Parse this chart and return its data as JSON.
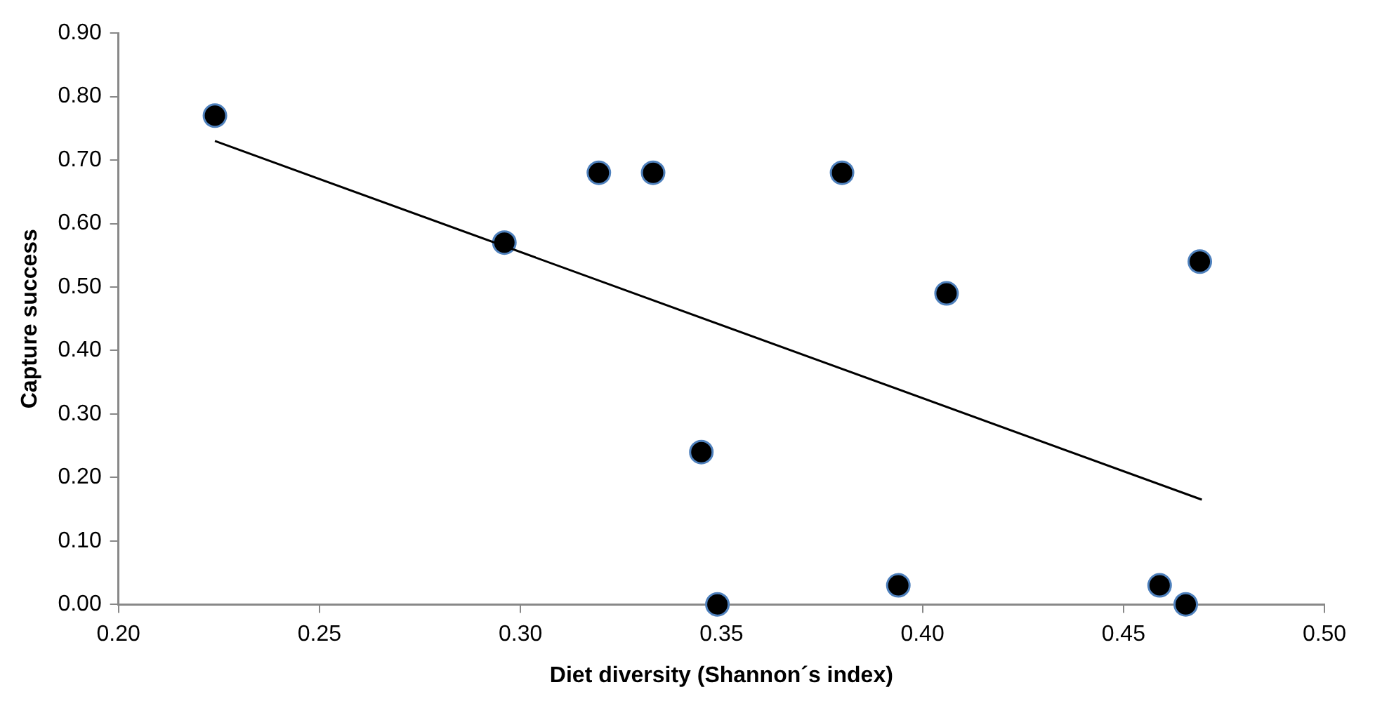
{
  "chart_data": {
    "type": "scatter",
    "xlabel": "Diet diversity (Shannon´s index)",
    "ylabel": "Capture success",
    "marker": "circle",
    "grid": false,
    "legend": false,
    "xlim": [
      0.2,
      0.5
    ],
    "xticks": [
      {
        "value": 0.2,
        "label": "0.20"
      },
      {
        "value": 0.25,
        "label": "0.25"
      },
      {
        "value": 0.3,
        "label": "0.30"
      },
      {
        "value": 0.35,
        "label": "0.35"
      },
      {
        "value": 0.4,
        "label": "0.40"
      },
      {
        "value": 0.45,
        "label": "0.45"
      },
      {
        "value": 0.5,
        "label": "0.50"
      }
    ],
    "ylim": [
      0,
      0.9
    ],
    "yticks": [
      {
        "value": 0,
        "label": "0.00"
      },
      {
        "value": 0.1,
        "label": "0.10"
      },
      {
        "value": 0.2,
        "label": "0.20"
      },
      {
        "value": 0.3,
        "label": "0.30"
      },
      {
        "value": 0.4,
        "label": "0.40"
      },
      {
        "value": 0.5,
        "label": "0.50"
      },
      {
        "value": 0.6,
        "label": "0.60"
      },
      {
        "value": 0.7,
        "label": "0.70"
      },
      {
        "value": 0.8,
        "label": "0.80"
      },
      {
        "value": 0.9,
        "label": "0.90"
      }
    ],
    "series": [
      {
        "color": "#000000",
        "x": [
          0.224,
          0.296,
          0.3195,
          0.333,
          0.345,
          0.349,
          0.38,
          0.406,
          0.469,
          0.394,
          0.459,
          0.4655
        ],
        "values": [
          0.77,
          0.57,
          0.68,
          0.68,
          0.24,
          0,
          0.68,
          0.49,
          0.54,
          0.03,
          0.03,
          0
        ]
      },
      {
        "type": "line",
        "color": "#000000",
        "marker": "none",
        "x": [
          0.224,
          0.4695
        ],
        "values": [
          0.73,
          0.165
        ]
      }
    ]
  }
}
